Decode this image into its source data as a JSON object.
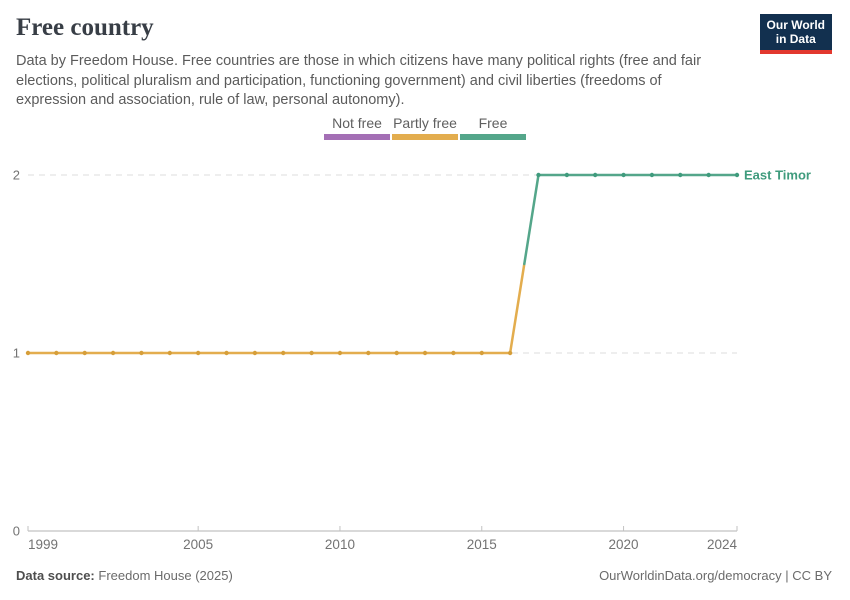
{
  "header": {
    "title": "Free country",
    "subtitle_lines": [
      "Data by Freedom House. Free countries are those in which citizens have many political rights (free and fair",
      "elections, political pluralism and participation, functioning government) and civil liberties (freedoms of",
      "expression and association, rule of law, personal autonomy)."
    ],
    "logo": {
      "line1": "Our World",
      "line2": "in Data",
      "bg_color": "#12304f",
      "accent_color": "#e2382e"
    }
  },
  "legend": {
    "items": [
      {
        "label": "Not free",
        "value": 0,
        "color": "#a46fb5"
      },
      {
        "label": "Partly free",
        "value": 1,
        "color": "#e3ad4e"
      },
      {
        "label": "Free",
        "value": 2,
        "color": "#54a68a"
      }
    ]
  },
  "chart_data": {
    "type": "line",
    "title": "Free country",
    "entity": "East Timor",
    "xlabel": "",
    "ylabel": "",
    "xlim": [
      1999,
      2024
    ],
    "ylim": [
      0,
      2
    ],
    "yticks": [
      0,
      1,
      2
    ],
    "xticks": [
      1999,
      2005,
      2010,
      2015,
      2020,
      2024
    ],
    "grid": "dashed-horizontal",
    "legend_position": "top",
    "value_categories": {
      "0": "Not free",
      "1": "Partly free",
      "2": "Free"
    },
    "value_colors": {
      "1": "#e3ad4e",
      "2": "#54a68a"
    },
    "dot_colors": {
      "1": "#d69e39",
      "2": "#3f9b7d"
    },
    "entity_label_color": "#3f9b7d",
    "series": [
      {
        "name": "East Timor",
        "x": [
          1999,
          2000,
          2001,
          2002,
          2003,
          2004,
          2005,
          2006,
          2007,
          2008,
          2009,
          2010,
          2011,
          2012,
          2013,
          2014,
          2015,
          2016,
          2017,
          2018,
          2019,
          2020,
          2021,
          2022,
          2023,
          2024
        ],
        "y": [
          1,
          1,
          1,
          1,
          1,
          1,
          1,
          1,
          1,
          1,
          1,
          1,
          1,
          1,
          1,
          1,
          1,
          1,
          2,
          2,
          2,
          2,
          2,
          2,
          2,
          2
        ]
      }
    ]
  },
  "footer": {
    "source_label": "Data source:",
    "source_value": "Freedom House (2025)",
    "url_label": "OurWorldinData.org/democracy",
    "separator": "|",
    "license": "CC BY"
  }
}
